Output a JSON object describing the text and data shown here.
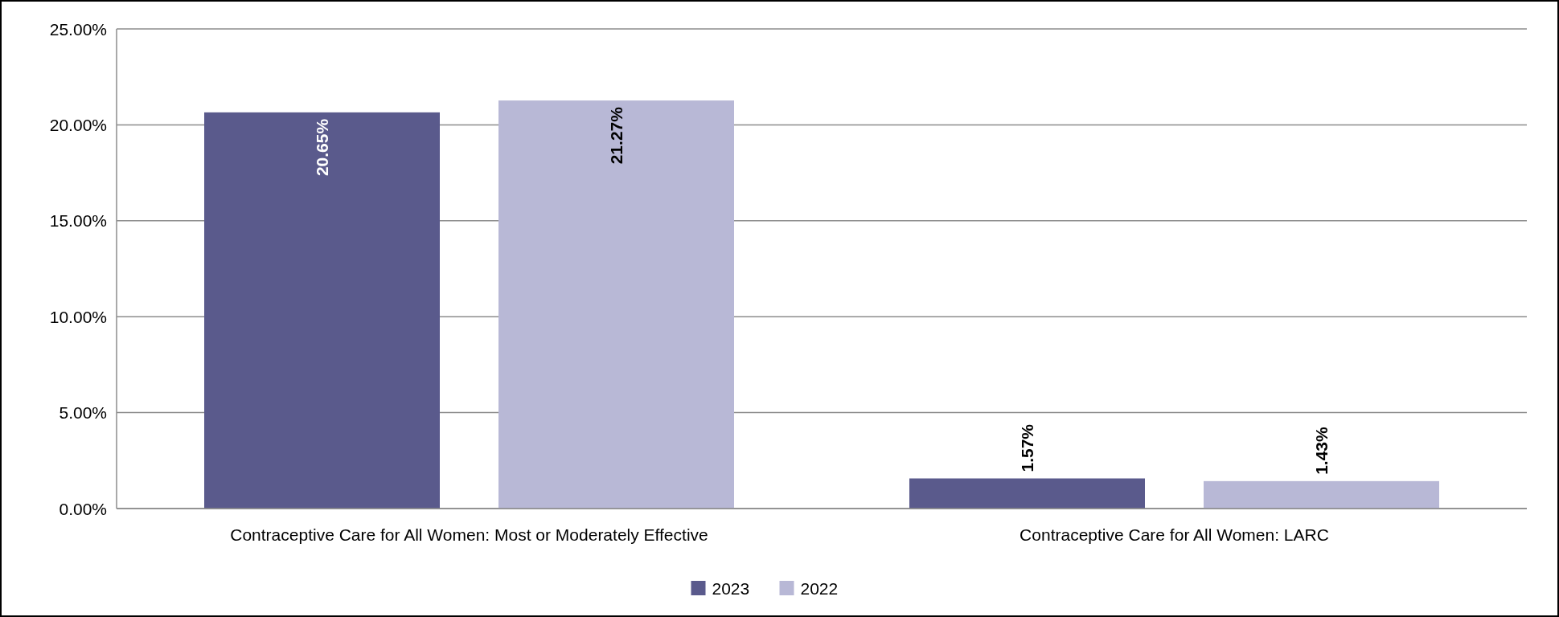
{
  "chart_data": {
    "type": "bar",
    "categories": [
      "Contraceptive Care for All Women: Most or Moderately Effective",
      "Contraceptive Care for All Women: LARC"
    ],
    "series": [
      {
        "name": "2023",
        "color": "#5a5a8c",
        "values": [
          20.65,
          1.57
        ],
        "value_labels": [
          "20.65%",
          "1.57%"
        ]
      },
      {
        "name": "2022",
        "color": "#b8b8d6",
        "values": [
          21.27,
          1.43
        ],
        "value_labels": [
          "21.27%",
          "1.43%"
        ]
      }
    ],
    "ylim": [
      0,
      25
    ],
    "yticks": [
      {
        "value": 0,
        "label": "0.00%"
      },
      {
        "value": 5,
        "label": "5.00%"
      },
      {
        "value": 10,
        "label": "10.00%"
      },
      {
        "value": 15,
        "label": "15.00%"
      },
      {
        "value": 20,
        "label": "20.00%"
      },
      {
        "value": 25,
        "label": "25.00%"
      }
    ],
    "grid": "y",
    "legend": "bottom"
  }
}
